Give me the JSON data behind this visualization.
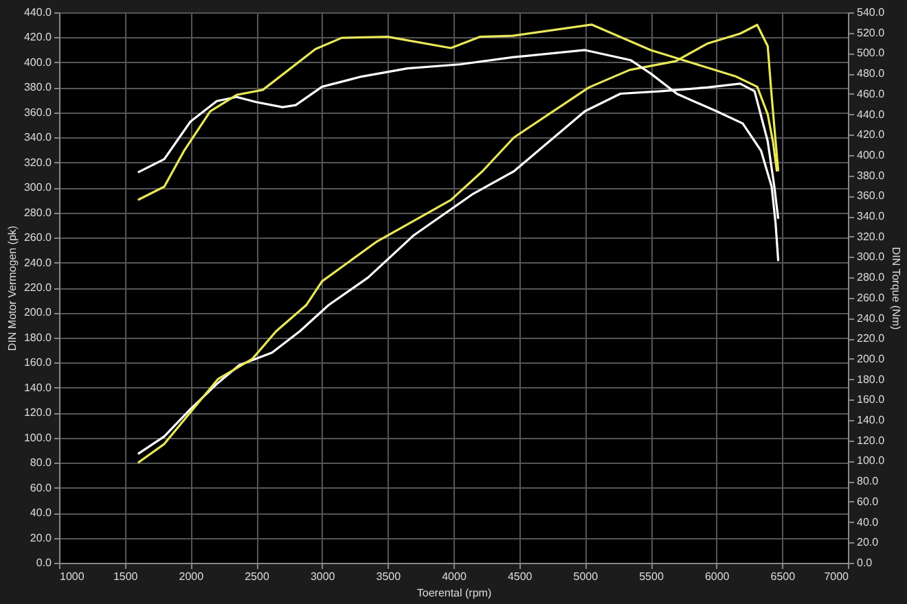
{
  "chart_data": {
    "type": "line",
    "xlabel": "Toerental (rpm)",
    "ylabel": "DIN Motor Vermogen (pk)",
    "y2label": "DIN Torque (Nm)",
    "xlim": [
      1000,
      7000
    ],
    "xticks": [
      1000,
      1500,
      2000,
      2500,
      3000,
      3500,
      4000,
      4500,
      5000,
      5500,
      6000,
      6500,
      7000
    ],
    "ylim": [
      0,
      440
    ],
    "yticks": [
      {
        "value": 0,
        "label": "0.0"
      },
      {
        "value": 20,
        "label": "20.0"
      },
      {
        "value": 40,
        "label": "40.0"
      },
      {
        "value": 60,
        "label": "60.0"
      },
      {
        "value": 80,
        "label": "80.0"
      },
      {
        "value": 100,
        "label": "100.0"
      },
      {
        "value": 120,
        "label": "120.0"
      },
      {
        "value": 140,
        "label": "140.0"
      },
      {
        "value": 160,
        "label": "160.0"
      },
      {
        "value": 180,
        "label": "180.0"
      },
      {
        "value": 200,
        "label": "200.0"
      },
      {
        "value": 220,
        "label": "220.0"
      },
      {
        "value": 240,
        "label": "240.0"
      },
      {
        "value": 260,
        "label": "260.0"
      },
      {
        "value": 280,
        "label": "280.0"
      },
      {
        "value": 300,
        "label": "300.0"
      },
      {
        "value": 320,
        "label": "320.0"
      },
      {
        "value": 340,
        "label": "340.0"
      },
      {
        "value": 360,
        "label": "360.0"
      },
      {
        "value": 380,
        "label": "380.0"
      },
      {
        "value": 400,
        "label": "400.0"
      },
      {
        "value": 420,
        "label": "420.0"
      },
      {
        "value": 440,
        "label": "440.0"
      }
    ],
    "y2lim": [
      0,
      540
    ],
    "y2ticks": [
      {
        "value": 0,
        "label": "0.0"
      },
      {
        "value": 20,
        "label": "20.0"
      },
      {
        "value": 40,
        "label": "40.0"
      },
      {
        "value": 60,
        "label": "60.0"
      },
      {
        "value": 80,
        "label": "80.0"
      },
      {
        "value": 100,
        "label": "100.0"
      },
      {
        "value": 120,
        "label": "120.0"
      },
      {
        "value": 140,
        "label": "140.0"
      },
      {
        "value": 160,
        "label": "160.0"
      },
      {
        "value": 180,
        "label": "180.0"
      },
      {
        "value": 200,
        "label": "200.0"
      },
      {
        "value": 220,
        "label": "220.0"
      },
      {
        "value": 240,
        "label": "240.0"
      },
      {
        "value": 260,
        "label": "260.0"
      },
      {
        "value": 280,
        "label": "280.0"
      },
      {
        "value": 300,
        "label": "300.0"
      },
      {
        "value": 320,
        "label": "320.0"
      },
      {
        "value": 340,
        "label": "340.0"
      },
      {
        "value": 360,
        "label": "360.0"
      },
      {
        "value": 380,
        "label": "380.0"
      },
      {
        "value": 400,
        "label": "400.0"
      },
      {
        "value": 420,
        "label": "420.0"
      },
      {
        "value": 440,
        "label": "440.0"
      },
      {
        "value": 460,
        "label": "460.0"
      },
      {
        "value": 480,
        "label": "480.0"
      },
      {
        "value": 500,
        "label": "500.0"
      },
      {
        "value": 520,
        "label": "520.0"
      },
      {
        "value": 540,
        "label": "540.0"
      }
    ],
    "grid": true,
    "marker": "none",
    "line_style": "solid",
    "series": [
      {
        "color": "#ffffff",
        "axis": "y2",
        "x": [
          1600,
          1800,
          2000,
          2200,
          2350,
          2500,
          2700,
          2800,
          3000,
          3300,
          3650,
          4050,
          4450,
          5000,
          5350,
          5500,
          5700,
          6000,
          6200,
          6340,
          6420,
          6450,
          6470
        ],
        "values": [
          383,
          396,
          433,
          453,
          457,
          452,
          447,
          449,
          467,
          477,
          485,
          489,
          496,
          503,
          493,
          480,
          460,
          443,
          431,
          404,
          369,
          333,
          296
        ]
      },
      {
        "color": "#e8e85a",
        "axis": "y2",
        "x": [
          1600,
          1800,
          1950,
          2150,
          2350,
          2550,
          2950,
          3150,
          3500,
          3980,
          4200,
          4450,
          5050,
          5500,
          5800,
          6150,
          6310,
          6390,
          6430,
          6460
        ],
        "values": [
          356,
          369,
          404,
          443,
          459,
          464,
          504,
          515,
          516,
          505,
          516,
          517,
          528,
          503,
          491,
          477,
          467,
          440,
          413,
          384
        ]
      },
      {
        "color": "#ffffff",
        "x": [
          1600,
          1800,
          2000,
          2200,
          2370,
          2620,
          2830,
          3050,
          3350,
          3700,
          4150,
          4460,
          5000,
          5270,
          5580,
          5930,
          6180,
          6290,
          6390,
          6440,
          6470
        ],
        "values": [
          87,
          101,
          123,
          143,
          158,
          168,
          185,
          206,
          228,
          262,
          295,
          313,
          361,
          375,
          377,
          380,
          383,
          377,
          337,
          301,
          275
        ]
      },
      {
        "color": "#e8e85a",
        "x": [
          1600,
          1800,
          2020,
          2210,
          2470,
          2650,
          2880,
          3000,
          3420,
          3980,
          4220,
          4460,
          5030,
          5340,
          5690,
          5930,
          6180,
          6310,
          6390,
          6420,
          6450,
          6470
        ],
        "values": [
          80,
          95,
          123,
          147,
          163,
          185,
          206,
          225,
          257,
          290,
          313,
          340,
          380,
          394,
          401,
          415,
          423,
          430,
          413,
          373,
          337,
          313
        ]
      }
    ]
  }
}
